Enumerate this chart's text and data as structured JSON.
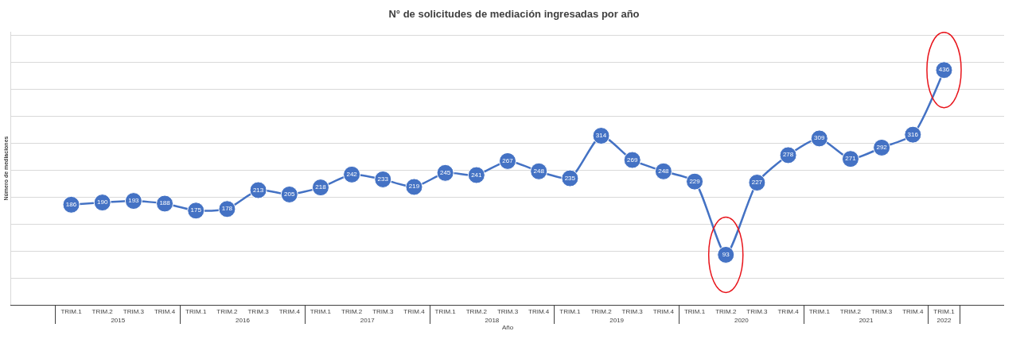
{
  "chart_data": {
    "type": "line",
    "title": "N° de solicitudes de mediación ingresadas por año",
    "xlabel": "Año",
    "categories": [
      "TRIM.1",
      "TRIM.2",
      "TRIM.3",
      "TRIM.4",
      "TRIM.1",
      "TRIM.2",
      "TRIM.3",
      "TRIM.4",
      "TRIM.1",
      "TRIM.2",
      "TRIM.3",
      "TRIM.4",
      "TRIM.1",
      "TRIM.2",
      "TRIM.3",
      "TRIM.4",
      "TRIM.1",
      "TRIM.2",
      "TRIM.3",
      "TRIM.4",
      "TRIM.1",
      "TRIM.2",
      "TRIM.3",
      "TRIM.4",
      "TRIM.1",
      "TRIM.2",
      "TRIM.3",
      "TRIM.4",
      "TRIM.1"
    ],
    "annotations": [
      "Número de mediaciones",
      "2015",
      "2016",
      "2017",
      "2018",
      "2019",
      "2020",
      "2021",
      "2022"
    ],
    "series": [
      {
        "color": "#4472c4",
        "values": [
          186,
          190,
          193,
          188,
          175,
          178,
          213,
          205,
          218,
          242,
          233,
          219,
          245,
          241,
          267,
          248,
          235,
          314,
          269,
          248,
          229,
          93,
          227,
          278,
          309,
          271,
          292,
          316,
          436
        ]
      }
    ],
    "grid": "y",
    "marker": "circle",
    "line_style": "solid",
    "data_labels": true,
    "tick_labels": "x",
    "legend": false
  }
}
